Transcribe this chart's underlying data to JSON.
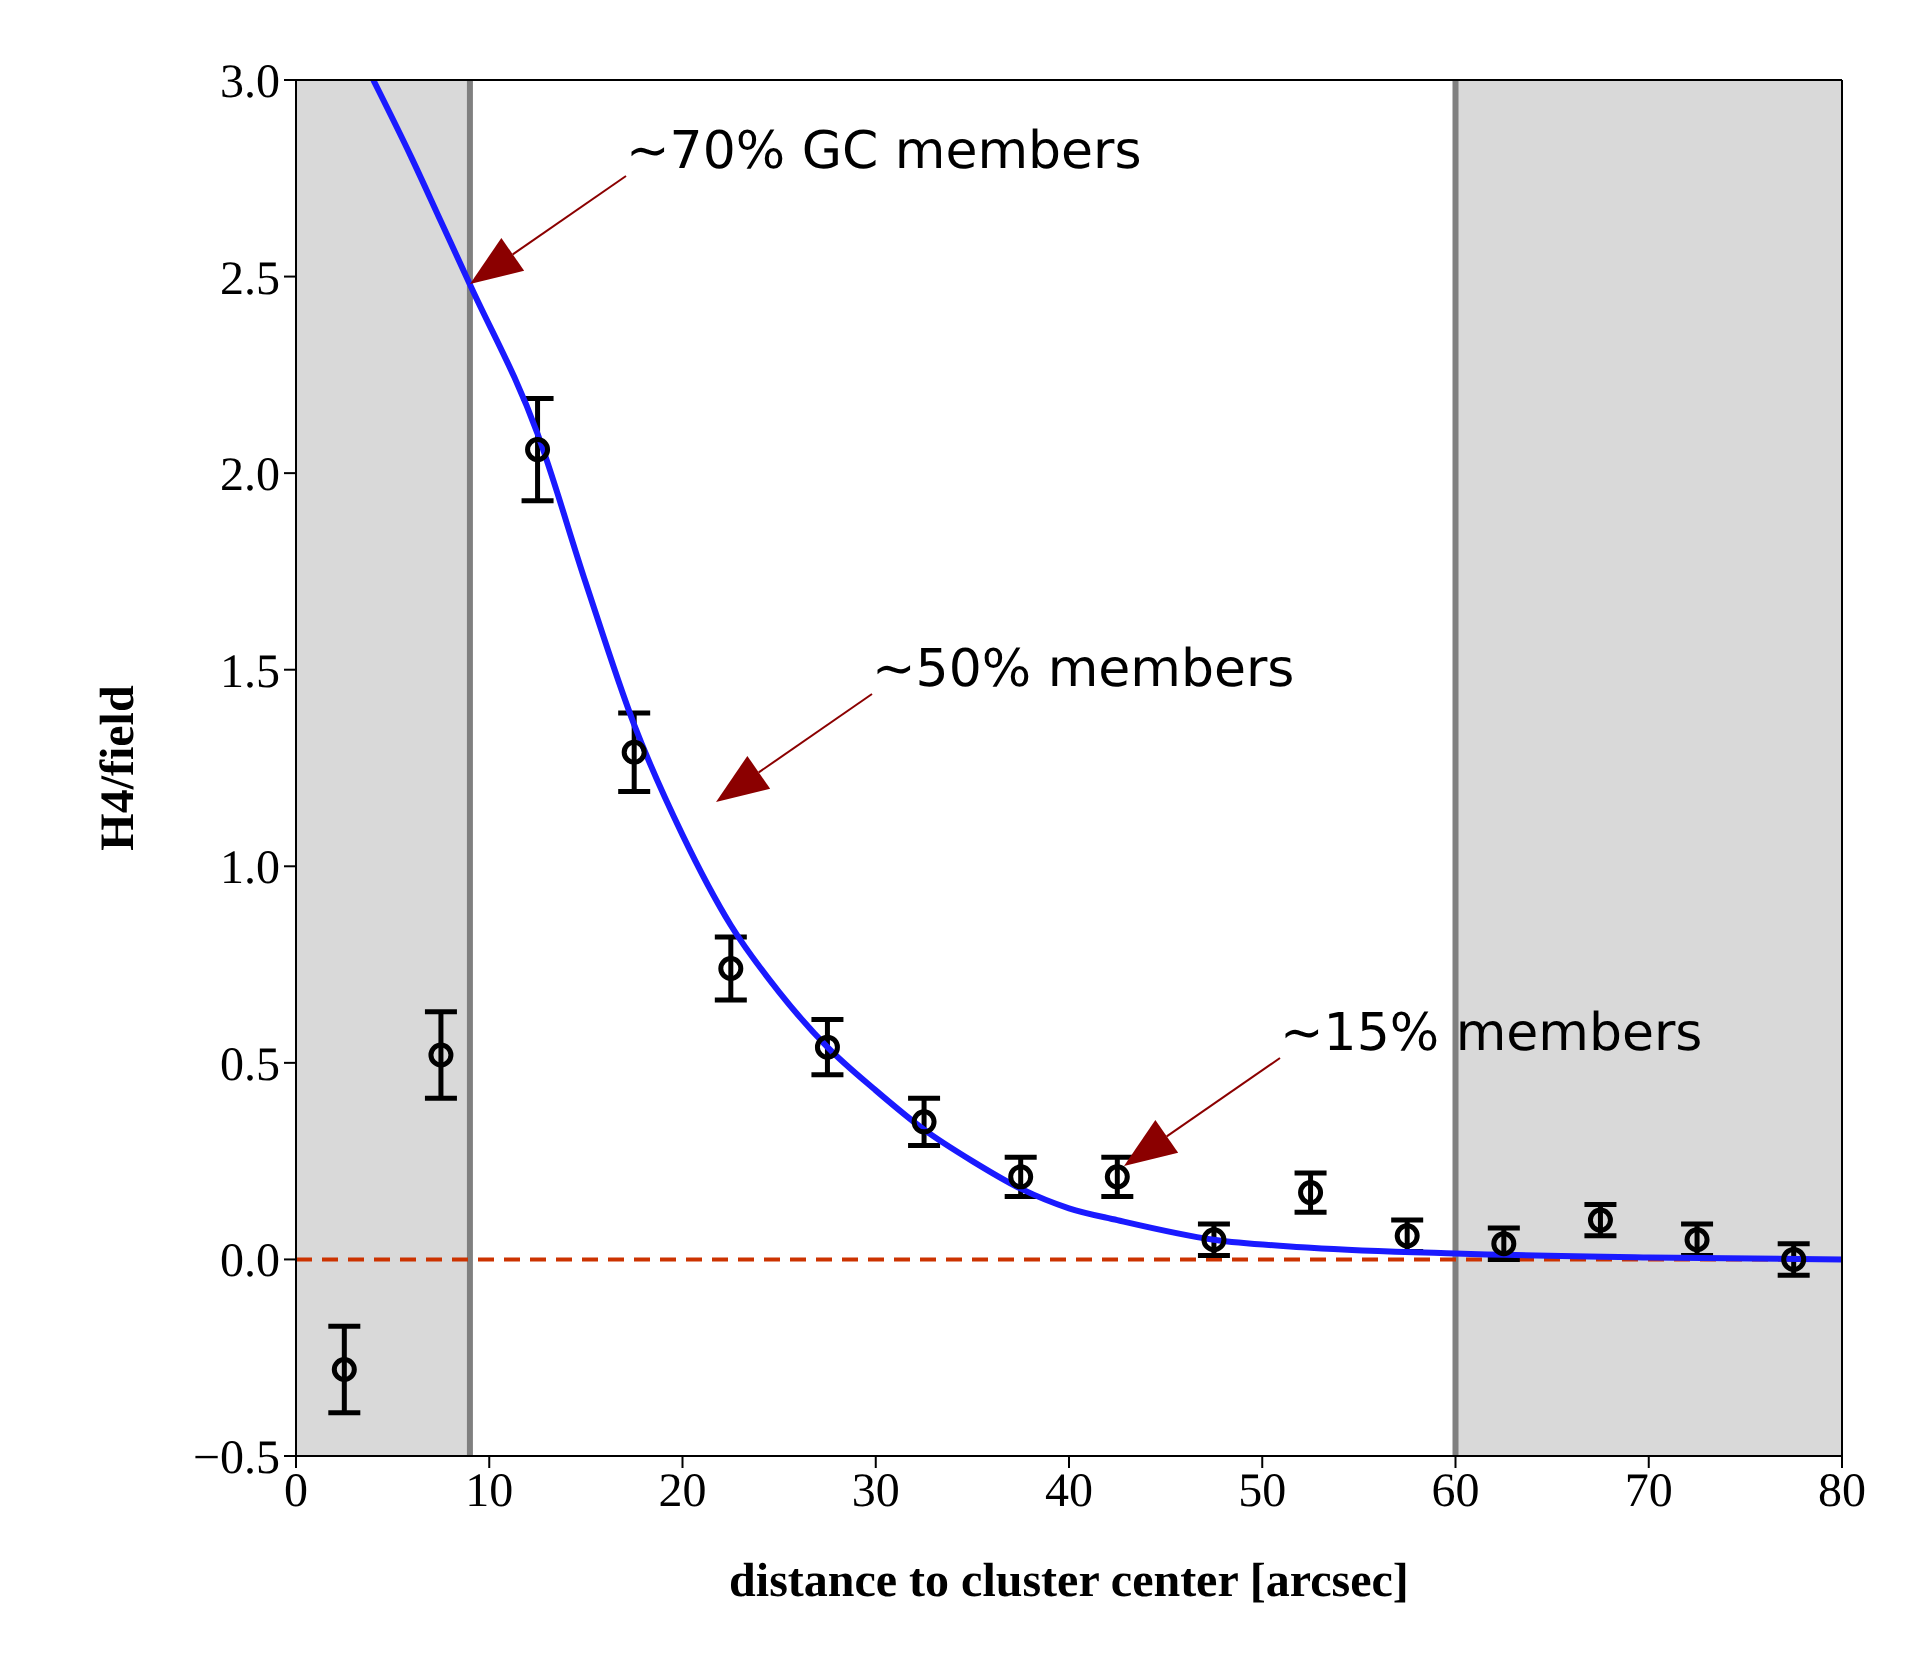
{
  "chart_data": {
    "type": "scatter",
    "xlabel": "distance to cluster center [arcsec]",
    "ylabel": "H4/field",
    "xlim": [
      0,
      80
    ],
    "xticks": [
      0,
      10,
      20,
      30,
      40,
      50,
      60,
      70,
      80
    ],
    "ylim": [
      -0.5,
      3.0
    ],
    "yticks": [
      {
        "value": -0.5,
        "label": "−0.5"
      },
      {
        "value": 0,
        "label": "0.0"
      },
      {
        "value": 0.5,
        "label": "0.5"
      },
      {
        "value": 1,
        "label": "1.0"
      },
      {
        "value": 1.5,
        "label": "1.5"
      },
      {
        "value": 2,
        "label": "2.0"
      },
      {
        "value": 2.5,
        "label": "2.5"
      },
      {
        "value": 3,
        "label": "3.0"
      }
    ],
    "grid": false,
    "legend": false,
    "series": [
      {
        "color": "#000000",
        "marker": "circle",
        "x": [
          2.5,
          7.5,
          12.5,
          17.5,
          22.5,
          27.5,
          32.5,
          37.5,
          42.5,
          47.5,
          52.5,
          57.5,
          62.5,
          67.5,
          72.5,
          77.5
        ],
        "values": [
          -0.28,
          0.52,
          2.06,
          1.29,
          0.74,
          0.54,
          0.35,
          0.21,
          0.21,
          0.05,
          0.17,
          0.06,
          0.04,
          0.1,
          0.05,
          0.0
        ],
        "errors": [
          0.11,
          0.11,
          0.13,
          0.1,
          0.08,
          0.07,
          0.06,
          0.05,
          0.05,
          0.04,
          0.05,
          0.04,
          0.04,
          0.04,
          0.04,
          0.04
        ]
      },
      {
        "type": "line",
        "color": "#1a1aff",
        "x": [
          4,
          6,
          7.5,
          9,
          12.5,
          15,
          17.5,
          20,
          22.5,
          25,
          27.5,
          30,
          32.5,
          35,
          37.5,
          40,
          42.5,
          47.5,
          52.5,
          60,
          70,
          80
        ],
        "values": [
          3.0,
          2.8,
          2.64,
          2.48,
          2.1,
          1.72,
          1.36,
          1.08,
          0.85,
          0.68,
          0.54,
          0.43,
          0.33,
          0.25,
          0.18,
          0.13,
          0.1,
          0.05,
          0.03,
          0.015,
          0.005,
          0.0
        ]
      }
    ],
    "bands": [
      {
        "axis": "x",
        "from": 0,
        "to": 9,
        "color": "#d9d9d9"
      },
      {
        "axis": "x",
        "from": 60,
        "to": 80,
        "color": "#d9d9d9"
      }
    ],
    "ref_lines": [
      {
        "axis": "x",
        "value": 9,
        "color": "#808080",
        "line_style": "solid"
      },
      {
        "axis": "x",
        "value": 60,
        "color": "#808080",
        "line_style": "solid"
      },
      {
        "axis": "y",
        "value": 0,
        "color": "#cc3300",
        "line_style": "dashed"
      }
    ],
    "annotations": [
      "~70% GC members",
      "~50% members",
      "~15% members"
    ]
  }
}
